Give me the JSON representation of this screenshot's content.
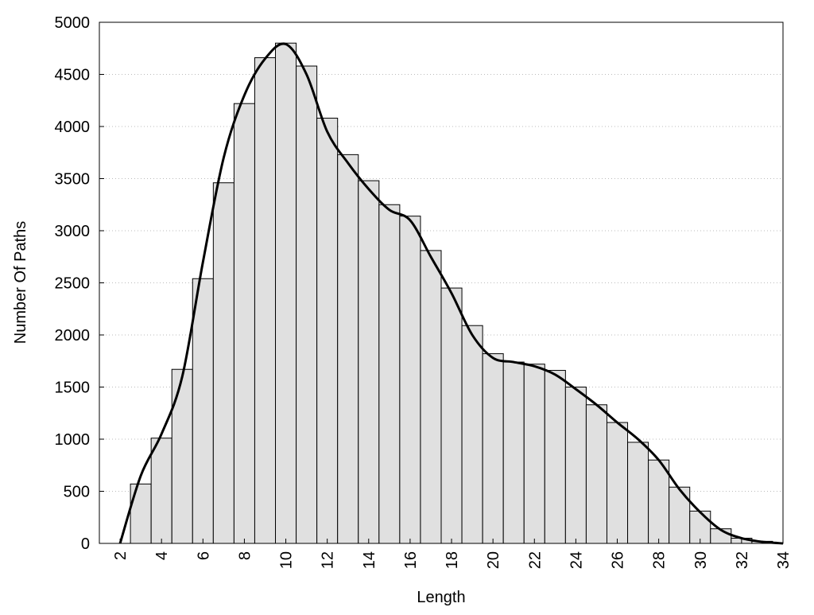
{
  "chart_data": {
    "type": "histogram",
    "x_label": "Length",
    "y_label": "Number Of Paths",
    "bins": [
      2.5,
      3.5,
      4.5,
      5.5,
      6.5,
      7.5,
      8.5,
      9.5,
      10.5,
      11.5,
      12.5,
      13.5,
      14.5,
      15.5,
      16.5,
      17.5,
      18.5,
      19.5,
      20.5,
      21.5,
      22.5,
      23.5,
      24.5,
      25.5,
      26.5,
      27.5,
      28.5,
      29.5,
      30.5,
      31.5,
      32.5,
      33.5
    ],
    "values": [
      570,
      1010,
      1670,
      2540,
      3460,
      4220,
      4660,
      4800,
      4580,
      4080,
      3730,
      3480,
      3250,
      3140,
      2810,
      2450,
      2090,
      1820,
      1740,
      1720,
      1660,
      1500,
      1330,
      1160,
      970,
      800,
      540,
      310,
      140,
      50,
      20
    ],
    "color": "#e0e0e0",
    "edge_color": "#000000",
    "curve": {
      "color": "#000000",
      "x": [
        2,
        3,
        4,
        5,
        6,
        7,
        8,
        9,
        10,
        11,
        12,
        13,
        14,
        15,
        16,
        17,
        18,
        19,
        20,
        21,
        22,
        23,
        24,
        25,
        26,
        27,
        28,
        29,
        30,
        31,
        32,
        33,
        34
      ],
      "y": [
        0,
        650,
        1050,
        1600,
        2700,
        3700,
        4300,
        4650,
        4790,
        4500,
        3950,
        3650,
        3400,
        3200,
        3100,
        2750,
        2400,
        2000,
        1780,
        1740,
        1700,
        1620,
        1480,
        1330,
        1160,
        1000,
        800,
        520,
        300,
        130,
        50,
        15,
        0
      ]
    },
    "xlim": [
      1,
      34
    ],
    "xticks": [
      2,
      4,
      6,
      8,
      10,
      12,
      14,
      16,
      18,
      20,
      22,
      24,
      26,
      28,
      30,
      32,
      34
    ],
    "ylim": [
      0,
      5000
    ],
    "yticks": [
      0,
      500,
      1000,
      1500,
      2000,
      2500,
      3000,
      3500,
      4000,
      4500,
      5000
    ],
    "grid": true
  }
}
